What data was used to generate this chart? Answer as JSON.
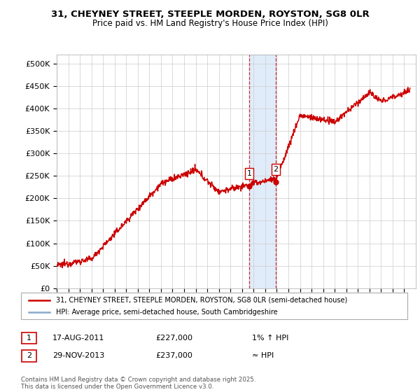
{
  "title1": "31, CHEYNEY STREET, STEEPLE MORDEN, ROYSTON, SG8 0LR",
  "title2": "Price paid vs. HM Land Registry's House Price Index (HPI)",
  "ylim": [
    0,
    520000
  ],
  "yticks": [
    0,
    50000,
    100000,
    150000,
    200000,
    250000,
    300000,
    350000,
    400000,
    450000,
    500000
  ],
  "ytick_labels": [
    "£0",
    "£50K",
    "£100K",
    "£150K",
    "£200K",
    "£250K",
    "£300K",
    "£350K",
    "£400K",
    "£450K",
    "£500K"
  ],
  "line_color": "#cc0000",
  "hpi_color": "#88aacc",
  "bg_color": "#ffffff",
  "grid_color": "#cccccc",
  "sale1_x": 2011.63,
  "sale1_y": 227000,
  "sale2_x": 2013.91,
  "sale2_y": 237000,
  "shade_color": "#cce0f5",
  "legend_line1": "31, CHEYNEY STREET, STEEPLE MORDEN, ROYSTON, SG8 0LR (semi-detached house)",
  "legend_line2": "HPI: Average price, semi-detached house, South Cambridgeshire",
  "table_row1": [
    "1",
    "17-AUG-2011",
    "£227,000",
    "1% ↑ HPI"
  ],
  "table_row2": [
    "2",
    "29-NOV-2013",
    "£237,000",
    "≈ HPI"
  ],
  "footnote": "Contains HM Land Registry data © Crown copyright and database right 2025.\nThis data is licensed under the Open Government Licence v3.0.",
  "xmin": 1995,
  "xmax": 2026,
  "xstart": 1995.0,
  "xend": 2025.5
}
